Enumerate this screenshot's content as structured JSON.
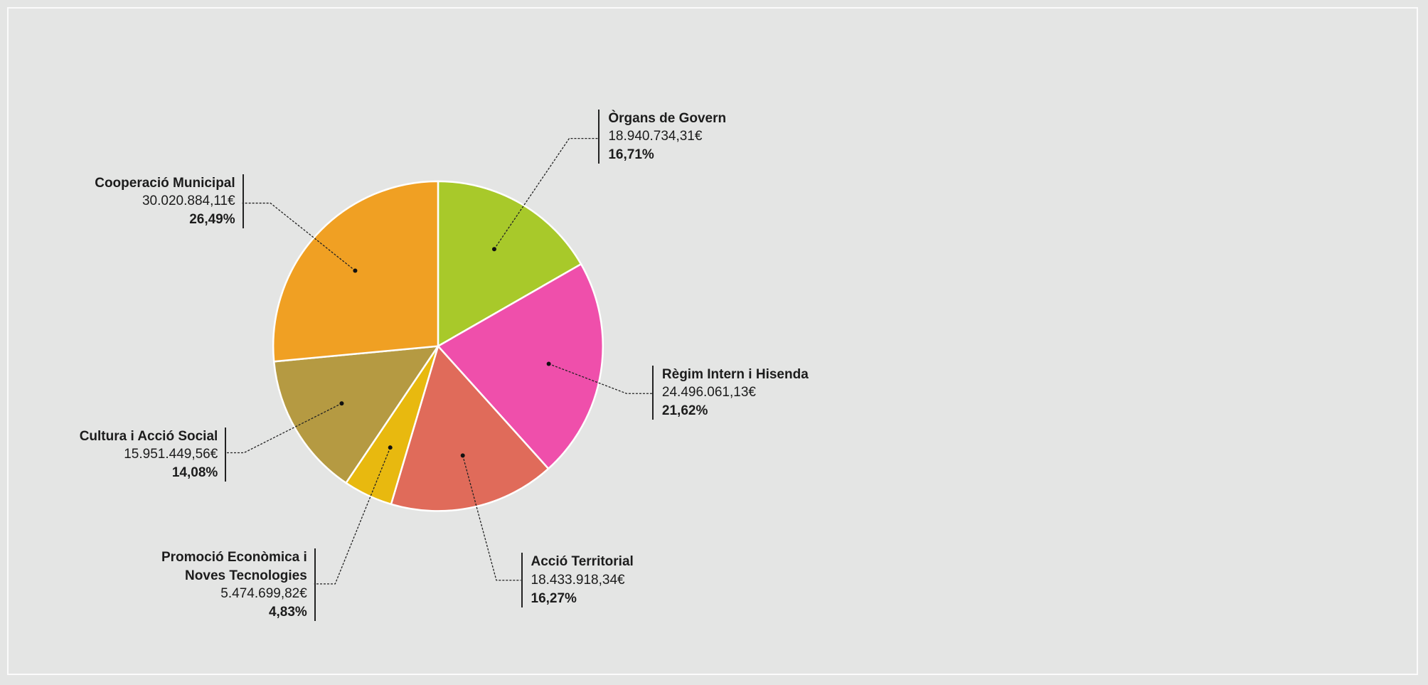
{
  "chart_data": {
    "type": "pie",
    "categories": [
      "Òrgans de Govern",
      "Règim Intern i Hisenda",
      "Acció Territorial",
      "Promoció Econòmica i Noves Tecnologies",
      "Cultura i Acció Social",
      "Cooperació Municipal"
    ],
    "amount_labels": [
      "18.940.734,31€",
      "24.496.061,13€",
      "18.433.918,34€",
      "5.474.699,82€",
      "15.951.449,56€",
      "30.020.884,11€"
    ],
    "values": [
      16.71,
      21.62,
      16.27,
      4.83,
      14.08,
      26.49
    ],
    "value_labels": [
      "16,71%",
      "21,62%",
      "16,27%",
      "4,83%",
      "14,08%",
      "26,49%"
    ],
    "colors": [
      "#a8c92a",
      "#ef4fab",
      "#e06b5a",
      "#e8b90f",
      "#b59a42",
      "#f0a023"
    ]
  }
}
